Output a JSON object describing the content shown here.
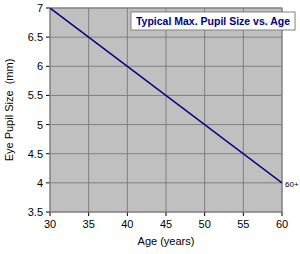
{
  "chart_data": {
    "type": "line",
    "title": "Typical Max. Pupil Size vs. Age",
    "x_label": "Age (years)",
    "y_label": "Eye Pupil Size  (mm)",
    "x": [
      30,
      60
    ],
    "values": [
      7,
      4
    ],
    "color": "#000080",
    "xlim": [
      30,
      60
    ],
    "xticks": [
      30,
      35,
      40,
      45,
      50,
      55,
      60
    ],
    "ylim": [
      3.5,
      7
    ],
    "yticks": [
      3.5,
      4,
      4.5,
      5,
      5.5,
      6,
      6.5,
      7
    ],
    "grid": true,
    "annotations": [
      {
        "text": "60+",
        "x": 60,
        "y": 4
      }
    ]
  }
}
